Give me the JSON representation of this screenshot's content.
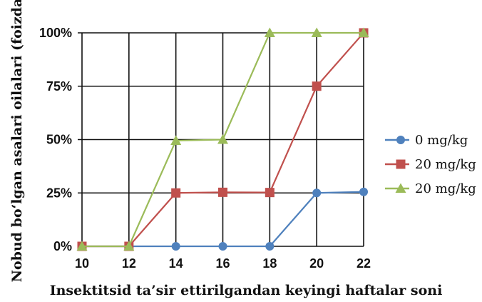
{
  "chart_data": {
    "type": "line",
    "title": "",
    "xlabel": "Insektitsid ta’sir ettirilgandan keyingi haftalar soni",
    "ylabel": "Nobud bo‘lgan asalari oilalari (foizda)",
    "x": [
      10,
      12,
      14,
      16,
      18,
      20,
      22
    ],
    "x_tick_labels": [
      "10",
      "12",
      "14",
      "16",
      "18",
      "20",
      "22"
    ],
    "y_ticks": [
      0,
      25,
      50,
      75,
      100
    ],
    "y_tick_labels": [
      "0%",
      "25%",
      "50%",
      "75%",
      "100%"
    ],
    "xlim": [
      10,
      22
    ],
    "ylim": [
      0,
      100
    ],
    "grid": true,
    "legend_position": "right",
    "series": [
      {
        "name": "0 mg/kg",
        "color": "#4f81bd",
        "marker": "circle",
        "values": [
          0,
          0,
          0,
          0,
          0,
          25,
          25.5
        ]
      },
      {
        "name": "20 mg/kg",
        "color": "#c0504d",
        "marker": "square",
        "values": [
          0,
          0,
          25,
          25.3,
          25.2,
          75,
          100
        ]
      },
      {
        "name": "20 mg/kg",
        "color": "#9bbb59",
        "marker": "triangle",
        "values": [
          0,
          0,
          49.5,
          50,
          100,
          100,
          100
        ]
      }
    ]
  }
}
